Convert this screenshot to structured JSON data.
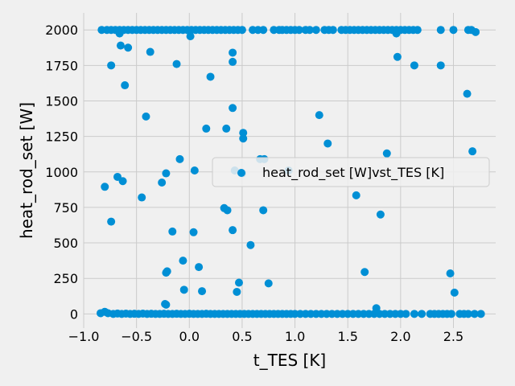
{
  "chart_data": {
    "type": "scatter",
    "xlabel": "t_TES [K]",
    "ylabel": "heat_rod_set [W]",
    "xlim": [
      -1.0,
      2.9
    ],
    "ylim": [
      -100,
      2120
    ],
    "xticks": [
      "−1.0",
      "−0.5",
      "0.0",
      "0.5",
      "1.0",
      "1.5",
      "2.0",
      "2.5"
    ],
    "xtick_values": [
      -1.0,
      -0.5,
      0.0,
      0.5,
      1.0,
      1.5,
      2.0,
      2.5
    ],
    "yticks": [
      "0",
      "250",
      "500",
      "750",
      "1000",
      "1250",
      "1500",
      "1750",
      "2000"
    ],
    "ytick_values": [
      0,
      250,
      500,
      750,
      1000,
      1250,
      1500,
      1750,
      2000
    ],
    "grid": true,
    "legend_placement": "center-right",
    "marker_color": "#008fd5",
    "series": [
      {
        "name": "heat_rod_set [W]vst_TES [K]",
        "points": [
          [
            -0.83,
            2000
          ],
          [
            -0.78,
            2000
          ],
          [
            -0.74,
            2000
          ],
          [
            -0.7,
            2000
          ],
          [
            -0.66,
            2000
          ],
          [
            -0.62,
            2000
          ],
          [
            -0.58,
            2000
          ],
          [
            -0.54,
            2000
          ],
          [
            -0.5,
            2000
          ],
          [
            -0.46,
            2000
          ],
          [
            -0.42,
            2000
          ],
          [
            -0.38,
            2000
          ],
          [
            -0.34,
            2000
          ],
          [
            -0.3,
            2000
          ],
          [
            -0.26,
            2000
          ],
          [
            -0.22,
            2000
          ],
          [
            -0.18,
            2000
          ],
          [
            -0.14,
            2000
          ],
          [
            -0.1,
            2000
          ],
          [
            -0.06,
            2000
          ],
          [
            -0.02,
            2000
          ],
          [
            0.02,
            2000
          ],
          [
            0.06,
            2000
          ],
          [
            0.1,
            2000
          ],
          [
            0.14,
            2000
          ],
          [
            0.18,
            2000
          ],
          [
            0.22,
            2000
          ],
          [
            0.26,
            2000
          ],
          [
            0.3,
            2000
          ],
          [
            0.34,
            2000
          ],
          [
            0.38,
            2000
          ],
          [
            0.42,
            2000
          ],
          [
            0.46,
            2000
          ],
          [
            0.5,
            2000
          ],
          [
            0.6,
            2000
          ],
          [
            0.65,
            2000
          ],
          [
            0.7,
            2000
          ],
          [
            0.8,
            2000
          ],
          [
            0.85,
            2000
          ],
          [
            0.88,
            2000
          ],
          [
            0.92,
            2000
          ],
          [
            0.96,
            2000
          ],
          [
            1.0,
            2000
          ],
          [
            1.04,
            2000
          ],
          [
            1.1,
            2000
          ],
          [
            1.14,
            2000
          ],
          [
            1.2,
            2000
          ],
          [
            1.28,
            2000
          ],
          [
            1.32,
            2000
          ],
          [
            1.36,
            2000
          ],
          [
            1.44,
            2000
          ],
          [
            1.48,
            2000
          ],
          [
            1.52,
            2000
          ],
          [
            1.56,
            2000
          ],
          [
            1.6,
            2000
          ],
          [
            1.64,
            2000
          ],
          [
            1.68,
            2000
          ],
          [
            1.72,
            2000
          ],
          [
            1.76,
            2000
          ],
          [
            1.8,
            2000
          ],
          [
            1.84,
            2000
          ],
          [
            1.88,
            2000
          ],
          [
            1.92,
            2000
          ],
          [
            1.96,
            2000
          ],
          [
            2.0,
            2000
          ],
          [
            2.04,
            2000
          ],
          [
            2.08,
            2000
          ],
          [
            2.12,
            2000
          ],
          [
            2.16,
            2000
          ],
          [
            2.38,
            2000
          ],
          [
            2.5,
            2000
          ],
          [
            2.64,
            2000
          ],
          [
            2.67,
            2000
          ],
          [
            -0.66,
            1975
          ],
          [
            0.01,
            1955
          ],
          [
            1.96,
            1975
          ],
          [
            2.71,
            1985
          ],
          [
            -0.65,
            1890
          ],
          [
            -0.58,
            1875
          ],
          [
            -0.37,
            1845
          ],
          [
            0.41,
            1840
          ],
          [
            1.97,
            1810
          ],
          [
            -0.12,
            1760
          ],
          [
            -0.74,
            1750
          ],
          [
            0.41,
            1775
          ],
          [
            2.13,
            1750
          ],
          [
            2.38,
            1750
          ],
          [
            0.2,
            1670
          ],
          [
            -0.61,
            1610
          ],
          [
            2.63,
            1550
          ],
          [
            0.41,
            1450
          ],
          [
            -0.41,
            1390
          ],
          [
            1.23,
            1400
          ],
          [
            0.16,
            1305
          ],
          [
            0.35,
            1305
          ],
          [
            0.51,
            1275
          ],
          [
            0.51,
            1235
          ],
          [
            1.31,
            1200
          ],
          [
            2.68,
            1145
          ],
          [
            1.87,
            1130
          ],
          [
            -0.09,
            1090
          ],
          [
            0.67,
            1090
          ],
          [
            0.71,
            1090
          ],
          [
            0.05,
            1010
          ],
          [
            0.43,
            1010
          ],
          [
            0.5,
            990
          ],
          [
            0.94,
            1010
          ],
          [
            -0.22,
            990
          ],
          [
            -0.8,
            895
          ],
          [
            -0.68,
            965
          ],
          [
            -0.63,
            935
          ],
          [
            -0.26,
            925
          ],
          [
            -0.45,
            820
          ],
          [
            1.58,
            835
          ],
          [
            0.33,
            745
          ],
          [
            0.36,
            730
          ],
          [
            0.7,
            730
          ],
          [
            1.81,
            700
          ],
          [
            -0.74,
            650
          ],
          [
            -0.16,
            580
          ],
          [
            0.04,
            575
          ],
          [
            0.41,
            590
          ],
          [
            0.58,
            485
          ],
          [
            -0.06,
            375
          ],
          [
            0.09,
            330
          ],
          [
            -0.21,
            300
          ],
          [
            -0.22,
            290
          ],
          [
            1.66,
            295
          ],
          [
            2.47,
            285
          ],
          [
            0.47,
            220
          ],
          [
            0.75,
            215
          ],
          [
            -0.05,
            170
          ],
          [
            0.12,
            160
          ],
          [
            0.45,
            155
          ],
          [
            2.51,
            150
          ],
          [
            -0.23,
            70
          ],
          [
            -0.22,
            65
          ],
          [
            1.77,
            40
          ],
          [
            -0.84,
            5
          ],
          [
            -0.8,
            15
          ],
          [
            -0.77,
            5
          ],
          [
            -0.72,
            0
          ],
          [
            -0.68,
            3
          ],
          [
            -0.64,
            0
          ],
          [
            -0.6,
            2
          ],
          [
            -0.56,
            0
          ],
          [
            -0.52,
            1
          ],
          [
            -0.48,
            0
          ],
          [
            -0.44,
            2
          ],
          [
            -0.4,
            0
          ],
          [
            -0.36,
            1
          ],
          [
            -0.32,
            0
          ],
          [
            -0.28,
            0
          ],
          [
            -0.24,
            1
          ],
          [
            -0.2,
            0
          ],
          [
            -0.16,
            0
          ],
          [
            -0.12,
            1
          ],
          [
            -0.08,
            0
          ],
          [
            -0.04,
            0
          ],
          [
            0.0,
            1
          ],
          [
            0.04,
            0
          ],
          [
            0.08,
            0
          ],
          [
            0.12,
            0
          ],
          [
            0.16,
            1
          ],
          [
            0.2,
            0
          ],
          [
            0.24,
            0
          ],
          [
            0.28,
            0
          ],
          [
            0.32,
            0
          ],
          [
            0.36,
            0
          ],
          [
            0.4,
            0
          ],
          [
            0.44,
            0
          ],
          [
            0.48,
            0
          ],
          [
            0.52,
            0
          ],
          [
            0.56,
            0
          ],
          [
            0.6,
            0
          ],
          [
            0.64,
            0
          ],
          [
            0.68,
            0
          ],
          [
            0.72,
            0
          ],
          [
            0.76,
            0
          ],
          [
            0.8,
            0
          ],
          [
            0.84,
            0
          ],
          [
            0.88,
            0
          ],
          [
            0.92,
            0
          ],
          [
            0.96,
            0
          ],
          [
            1.0,
            0
          ],
          [
            1.05,
            0
          ],
          [
            1.1,
            0
          ],
          [
            1.15,
            0
          ],
          [
            1.2,
            0
          ],
          [
            1.25,
            0
          ],
          [
            1.3,
            0
          ],
          [
            1.35,
            0
          ],
          [
            1.4,
            0
          ],
          [
            1.45,
            0
          ],
          [
            1.5,
            0
          ],
          [
            1.55,
            0
          ],
          [
            1.6,
            0
          ],
          [
            1.65,
            0
          ],
          [
            1.7,
            0
          ],
          [
            1.75,
            0
          ],
          [
            1.8,
            0
          ],
          [
            1.85,
            0
          ],
          [
            1.9,
            0
          ],
          [
            1.95,
            0
          ],
          [
            2.0,
            0
          ],
          [
            2.05,
            0
          ],
          [
            2.13,
            0
          ],
          [
            2.2,
            0
          ],
          [
            2.28,
            0
          ],
          [
            2.32,
            0
          ],
          [
            2.36,
            0
          ],
          [
            2.4,
            0
          ],
          [
            2.44,
            0
          ],
          [
            2.48,
            0
          ],
          [
            2.56,
            0
          ],
          [
            2.6,
            0
          ],
          [
            2.64,
            0
          ],
          [
            2.7,
            0
          ],
          [
            2.76,
            0
          ]
        ]
      }
    ]
  }
}
